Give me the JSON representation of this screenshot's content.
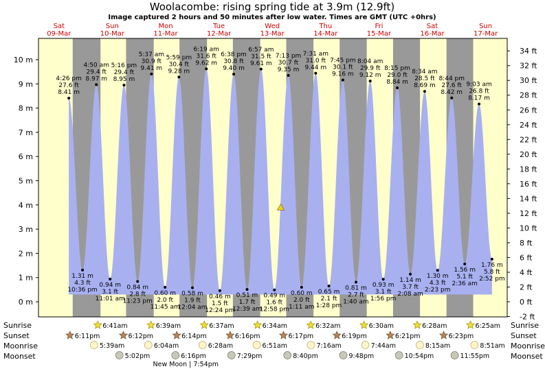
{
  "title": "Woolacombe: rising  spring tide at 3.9m (12.9ft)",
  "subtitle": "Image captured 2 hours and 50 minutes after low water. Times are GMT (UTC +0hrs)",
  "colors": {
    "day": "#ffffcc",
    "night": "#999999",
    "tide": "#a8b0f0",
    "day_label": "#d00000",
    "marker": "#e8d020"
  },
  "days": [
    {
      "dow": "Sat",
      "date": "09-Mar"
    },
    {
      "dow": "Sun",
      "date": "10-Mar"
    },
    {
      "dow": "Mon",
      "date": "11-Mar"
    },
    {
      "dow": "Tue",
      "date": "12-Mar"
    },
    {
      "dow": "Wed",
      "date": "13-Mar"
    },
    {
      "dow": "Thu",
      "date": "14-Mar"
    },
    {
      "dow": "Fri",
      "date": "15-Mar"
    },
    {
      "dow": "Sat",
      "date": "16-Mar"
    },
    {
      "dow": "Sun",
      "date": "17-Mar"
    }
  ],
  "chart_data": {
    "type": "area",
    "title": "Woolacombe: rising  spring tide at 3.9m (12.9ft)",
    "ylim_m": [
      -0.6,
      10.8
    ],
    "y_left_ticks": [
      "0 m",
      "1 m",
      "2 m",
      "3 m",
      "4 m",
      "5 m",
      "6 m",
      "7 m",
      "8 m",
      "9 m",
      "10 m"
    ],
    "y_right_ticks": [
      "-2 ft",
      "0 ft",
      "2 ft",
      "4 ft",
      "6 ft",
      "8 ft",
      "10 ft",
      "12 ft",
      "14 ft",
      "16 ft",
      "18 ft",
      "20 ft",
      "22 ft",
      "24 ft",
      "26 ft",
      "28 ft",
      "30 ft",
      "32 ft",
      "34 ft"
    ],
    "current": {
      "time": "13-Mar 15:47",
      "height_m": 3.9,
      "height_ft": 12.9
    },
    "series": [
      {
        "values": [
          {
            "t": "09-Mar 16:26",
            "time": "4:26 pm",
            "ft": "27.6 ft",
            "m": "8.41 m",
            "h": 8.41,
            "type": "high"
          },
          {
            "t": "09-Mar 22:36",
            "time": "10:36 pm",
            "ft": "4.3 ft",
            "m": "1.31 m",
            "h": 1.31,
            "type": "low"
          },
          {
            "t": "10-Mar 04:50",
            "time": "4:50 am",
            "ft": "29.4 ft",
            "m": "8.97 m",
            "h": 8.97,
            "type": "high"
          },
          {
            "t": "10-Mar 11:01",
            "time": "11:01 am",
            "ft": "3.1 ft",
            "m": "0.94 m",
            "h": 0.94,
            "type": "low"
          },
          {
            "t": "10-Mar 17:16",
            "time": "5:16 pm",
            "ft": "29.4 ft",
            "m": "8.95 m",
            "h": 8.95,
            "type": "high"
          },
          {
            "t": "10-Mar 23:23",
            "time": "11:23 pm",
            "ft": "2.8 ft",
            "m": "0.84 m",
            "h": 0.84,
            "type": "low"
          },
          {
            "t": "11-Mar 05:37",
            "time": "5:37 am",
            "ft": "30.9 ft",
            "m": "9.41 m",
            "h": 9.41,
            "type": "high"
          },
          {
            "t": "11-Mar 11:45",
            "time": "11:45 am",
            "ft": "2.0 ft",
            "m": "0.60 m",
            "h": 0.6,
            "type": "low"
          },
          {
            "t": "11-Mar 17:59",
            "time": "5:59 pm",
            "ft": "30.4 ft",
            "m": "9.28 m",
            "h": 9.28,
            "type": "high"
          },
          {
            "t": "12-Mar 00:04",
            "time": "12:04 am",
            "ft": "1.9 ft",
            "m": "0.58 m",
            "h": 0.58,
            "type": "low"
          },
          {
            "t": "12-Mar 06:19",
            "time": "6:19 am",
            "ft": "31.6 ft",
            "m": "9.62 m",
            "h": 9.62,
            "type": "high"
          },
          {
            "t": "12-Mar 12:24",
            "time": "12:24 pm",
            "ft": "1.5 ft",
            "m": "0.46 m",
            "h": 0.46,
            "type": "low"
          },
          {
            "t": "12-Mar 18:38",
            "time": "6:38 pm",
            "ft": "30.8 ft",
            "m": "9.40 m",
            "h": 9.4,
            "type": "high"
          },
          {
            "t": "13-Mar 00:39",
            "time": "12:39 am",
            "ft": "1.7 ft",
            "m": "0.51 m",
            "h": 0.51,
            "type": "low"
          },
          {
            "t": "13-Mar 06:57",
            "time": "6:57 am",
            "ft": "31.5 ft",
            "m": "9.61 m",
            "h": 9.61,
            "type": "high"
          },
          {
            "t": "13-Mar 12:58",
            "time": "12:58 pm",
            "ft": "1.6 ft",
            "m": "0.49 m",
            "h": 0.49,
            "type": "low"
          },
          {
            "t": "13-Mar 19:13",
            "time": "7:13 pm",
            "ft": "30.7 ft",
            "m": "9.35 m",
            "h": 9.35,
            "type": "high"
          },
          {
            "t": "14-Mar 01:11",
            "time": "1:11 am",
            "ft": "2.0 ft",
            "m": "0.60 m",
            "h": 0.6,
            "type": "low"
          },
          {
            "t": "14-Mar 07:31",
            "time": "7:31 am",
            "ft": "31.0 ft",
            "m": "9.44 m",
            "h": 9.44,
            "type": "high"
          },
          {
            "t": "14-Mar 13:28",
            "time": "1:28 pm",
            "ft": "2.1 ft",
            "m": "0.65 m",
            "h": 0.65,
            "type": "low"
          },
          {
            "t": "14-Mar 19:45",
            "time": "7:45 pm",
            "ft": "30.1 ft",
            "m": "9.16 m",
            "h": 9.16,
            "type": "high"
          },
          {
            "t": "15-Mar 01:40",
            "time": "1:40 am",
            "ft": "2.7 ft",
            "m": "0.81 m",
            "h": 0.81,
            "type": "low"
          },
          {
            "t": "15-Mar 08:04",
            "time": "8:04 am",
            "ft": "29.9 ft",
            "m": "9.12 m",
            "h": 9.12,
            "type": "high"
          },
          {
            "t": "15-Mar 13:56",
            "time": "1:56 pm",
            "ft": "3.1 ft",
            "m": "0.93 m",
            "h": 0.93,
            "type": "low"
          },
          {
            "t": "15-Mar 20:15",
            "time": "8:15 pm",
            "ft": "29.0 ft",
            "m": "8.84 m",
            "h": 8.84,
            "type": "high"
          },
          {
            "t": "16-Mar 02:08",
            "time": "2:08 am",
            "ft": "3.7 ft",
            "m": "1.14 m",
            "h": 1.14,
            "type": "low"
          },
          {
            "t": "16-Mar 08:34",
            "time": "8:34 am",
            "ft": "28.5 ft",
            "m": "8.69 m",
            "h": 8.69,
            "type": "high"
          },
          {
            "t": "16-Mar 14:23",
            "time": "2:23 pm",
            "ft": "4.3 ft",
            "m": "1.30 m",
            "h": 1.3,
            "type": "low"
          },
          {
            "t": "16-Mar 20:44",
            "time": "8:44 pm",
            "ft": "27.6 ft",
            "m": "8.42 m",
            "h": 8.42,
            "type": "high"
          },
          {
            "t": "17-Mar 02:36",
            "time": "2:36 am",
            "ft": "5.1 ft",
            "m": "1.56 m",
            "h": 1.56,
            "type": "low"
          },
          {
            "t": "17-Mar 09:03",
            "time": "9:03 am",
            "ft": "26.8 ft",
            "m": "8.17 m",
            "h": 8.17,
            "type": "high"
          },
          {
            "t": "17-Mar 14:52",
            "time": "2:52 pm",
            "ft": "5.8 ft",
            "m": "1.76 m",
            "h": 1.76,
            "type": "low"
          }
        ]
      }
    ]
  },
  "rows": {
    "sunrise_label": "Sunrise",
    "sunset_label": "Sunset",
    "moonrise_label": "Moonrise",
    "moonset_label": "Moonset",
    "sunrise": [
      {
        "t": "10-Mar 06:41",
        "label": "6:41am"
      },
      {
        "t": "11-Mar 06:39",
        "label": "6:39am"
      },
      {
        "t": "12-Mar 06:37",
        "label": "6:37am"
      },
      {
        "t": "13-Mar 06:34",
        "label": "6:34am"
      },
      {
        "t": "14-Mar 06:32",
        "label": "6:32am"
      },
      {
        "t": "15-Mar 06:30",
        "label": "6:30am"
      },
      {
        "t": "16-Mar 06:28",
        "label": "6:28am"
      },
      {
        "t": "17-Mar 06:25",
        "label": "6:25am"
      }
    ],
    "sunset": [
      {
        "t": "09-Mar 18:11",
        "label": "6:11pm"
      },
      {
        "t": "10-Mar 18:12",
        "label": "6:12pm"
      },
      {
        "t": "11-Mar 18:14",
        "label": "6:14pm"
      },
      {
        "t": "12-Mar 18:16",
        "label": "6:16pm"
      },
      {
        "t": "13-Mar 18:17",
        "label": "6:17pm"
      },
      {
        "t": "14-Mar 18:19",
        "label": "6:19pm"
      },
      {
        "t": "15-Mar 18:21",
        "label": "6:21pm"
      },
      {
        "t": "16-Mar 18:23",
        "label": "6:23pm"
      }
    ],
    "moonrise": [
      {
        "t": "10-Mar 05:39",
        "label": "5:39am"
      },
      {
        "t": "11-Mar 06:04",
        "label": "6:04am"
      },
      {
        "t": "12-Mar 06:28",
        "label": "6:28am"
      },
      {
        "t": "13-Mar 06:51",
        "label": "6:51am"
      },
      {
        "t": "14-Mar 07:16",
        "label": "7:16am"
      },
      {
        "t": "15-Mar 07:44",
        "label": "7:44am"
      },
      {
        "t": "16-Mar 08:15",
        "label": "8:15am"
      },
      {
        "t": "17-Mar 08:51",
        "label": "8:51am"
      }
    ],
    "moonset": [
      {
        "t": "10-Mar 17:02",
        "label": "5:02pm"
      },
      {
        "t": "11-Mar 18:16",
        "label": "6:16pm"
      },
      {
        "t": "12-Mar 19:29",
        "label": "7:29pm"
      },
      {
        "t": "13-Mar 20:40",
        "label": "8:40pm"
      },
      {
        "t": "14-Mar 21:48",
        "label": "9:48pm"
      },
      {
        "t": "15-Mar 22:54",
        "label": "10:54pm"
      },
      {
        "t": "16-Mar 23:55",
        "label": "11:55pm"
      }
    ],
    "new_moon": {
      "t": "11-Mar 19:54",
      "label": "New Moon | 7:54pm"
    }
  }
}
